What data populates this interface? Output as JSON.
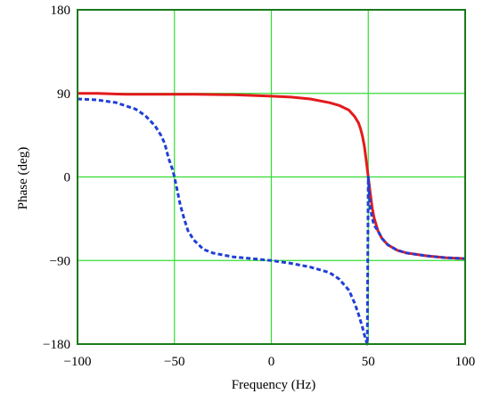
{
  "chart_data": {
    "type": "line",
    "title": "",
    "xlabel": "Frequency (Hz)",
    "ylabel": "Phase (deg)",
    "xlim": [
      -100,
      100
    ],
    "ylim": [
      -180,
      180
    ],
    "x_ticks": [
      -100,
      -50,
      0,
      50,
      100
    ],
    "x_tick_labels": [
      "−100",
      "−50",
      "0",
      "50",
      "100"
    ],
    "y_ticks": [
      180,
      90,
      0,
      -90,
      -180
    ],
    "y_tick_labels": [
      "180",
      "90",
      "0",
      "−90",
      "−180"
    ],
    "grid": true,
    "grid_color": "#33dd33",
    "frame_color": "#1a7a1a",
    "legend": "none",
    "series": [
      {
        "style": "solid",
        "color": "#e41a1c",
        "x": [
          -100,
          -90,
          -75,
          -60,
          -40,
          -20,
          0,
          10,
          20,
          30,
          35,
          40,
          43,
          45,
          46,
          47,
          48,
          49,
          50,
          51,
          52,
          53,
          55,
          57,
          60,
          65,
          70,
          80,
          90,
          100
        ],
        "y": [
          90,
          90,
          89,
          89,
          89,
          88.5,
          87,
          86,
          84,
          80,
          77,
          72,
          65,
          58,
          52,
          44,
          33,
          17,
          0,
          -17,
          -33,
          -44,
          -58,
          -66,
          -73,
          -79,
          -82,
          -85,
          -87,
          -88
        ]
      },
      {
        "style": "dashed",
        "color": "#1f3fd6",
        "x": [
          -100,
          -90,
          -80,
          -70,
          -65,
          -60,
          -57,
          -55,
          -53,
          -51,
          -50,
          -49,
          -47,
          -45,
          -43,
          -40,
          -35,
          -30,
          -20,
          -10,
          0,
          10,
          20,
          30,
          35,
          40,
          43,
          45,
          47,
          48,
          49,
          49.5,
          50,
          50.5,
          51,
          52,
          53,
          55,
          57,
          60,
          65,
          70,
          80,
          90,
          100
        ],
        "y": [
          84,
          83,
          80,
          73,
          66,
          55,
          45,
          36,
          20,
          8,
          0,
          -10,
          -30,
          -45,
          -58,
          -68,
          -78,
          -82,
          -86,
          -88,
          -90,
          -93,
          -97,
          -103,
          -110,
          -122,
          -136,
          -148,
          -162,
          -170,
          -177,
          -180,
          0,
          -17,
          -33,
          -44,
          -52,
          -58,
          -66,
          -73,
          -79,
          -82,
          -85,
          -87,
          -88
        ]
      }
    ]
  }
}
